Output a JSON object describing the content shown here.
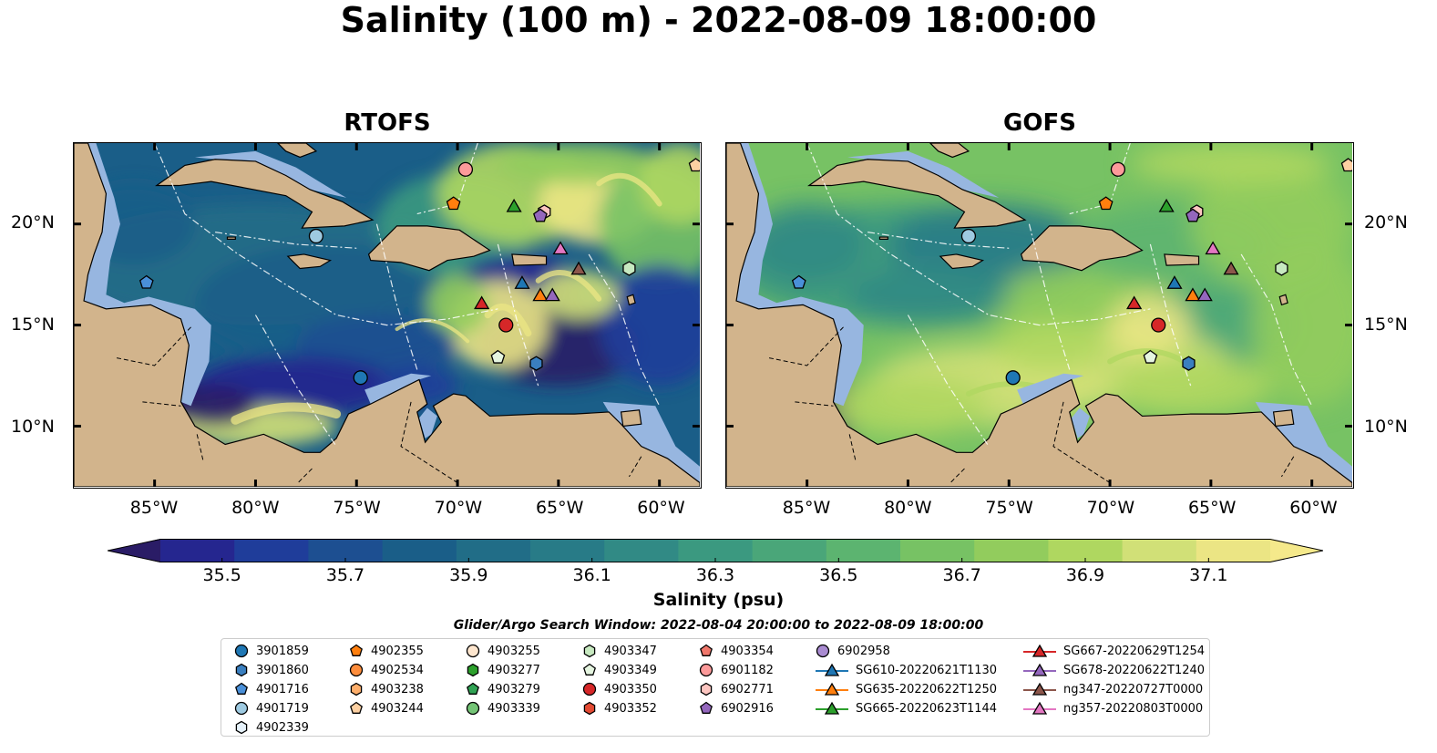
{
  "title": "Salinity (100 m) - 2022-08-09 18:00:00",
  "panels": [
    {
      "title": "RTOFS",
      "key": "rtofs"
    },
    {
      "title": "GOFS",
      "key": "gofs"
    }
  ],
  "map": {
    "lon_range": [
      -89,
      -58
    ],
    "lat_range": [
      7,
      24
    ],
    "lon_ticks": [
      "85°W",
      "80°W",
      "75°W",
      "70°W",
      "65°W",
      "60°W"
    ],
    "lon_tick_values": [
      -85,
      -80,
      -75,
      -70,
      -65,
      -60
    ],
    "lat_ticks": [
      "20°N",
      "15°N",
      "10°N"
    ],
    "lat_tick_values": [
      20,
      15,
      10
    ],
    "land_color": "#d2b48c",
    "shelf_color": "#97b6e0"
  },
  "colorbar": {
    "label": "Salinity (psu)",
    "min": 35.4,
    "max": 37.2,
    "ticks": [
      "35.5",
      "35.7",
      "35.9",
      "36.1",
      "36.3",
      "36.5",
      "36.7",
      "36.9",
      "37.1"
    ],
    "tick_values": [
      35.5,
      35.7,
      35.9,
      36.1,
      36.3,
      36.5,
      36.7,
      36.9,
      37.1
    ],
    "colors": [
      "#2a1c66",
      "#25268f",
      "#1f3d9a",
      "#1d4f91",
      "#1a5e88",
      "#216d87",
      "#287b87",
      "#318a85",
      "#3b9980",
      "#4aa679",
      "#5cb470",
      "#77c264",
      "#92cc5d",
      "#afd760",
      "#d1e077",
      "#ebe584",
      "#f5e98b"
    ]
  },
  "search_window": "Glider/Argo Search Window: 2022-08-04 20:00:00 to 2022-08-09 18:00:00",
  "legend": [
    {
      "label": "3901859",
      "marker": "circle",
      "color": "#1f77b4"
    },
    {
      "label": "3901860",
      "marker": "hexagon",
      "color": "#3a7fbf"
    },
    {
      "label": "4901716",
      "marker": "pentagon",
      "color": "#4a90d9"
    },
    {
      "label": "4901719",
      "marker": "circle",
      "color": "#9ecae1"
    },
    {
      "label": "4902339",
      "marker": "hexagon",
      "color": "#e6f2fb"
    },
    {
      "label": "4902355",
      "marker": "pentagon",
      "color": "#ff7f0e"
    },
    {
      "label": "4902534",
      "marker": "circle",
      "color": "#fd8d3c"
    },
    {
      "label": "4903238",
      "marker": "hexagon",
      "color": "#fdae6b"
    },
    {
      "label": "4903244",
      "marker": "pentagon",
      "color": "#fdd0a2"
    },
    {
      "label": "4903255",
      "marker": "circle",
      "color": "#fee6ce"
    },
    {
      "label": "4903277",
      "marker": "hexagon",
      "color": "#2ca02c"
    },
    {
      "label": "4903279",
      "marker": "pentagon",
      "color": "#31a354"
    },
    {
      "label": "4903339",
      "marker": "circle",
      "color": "#74c476"
    },
    {
      "label": "4903347",
      "marker": "hexagon",
      "color": "#c7e9c0"
    },
    {
      "label": "4903349",
      "marker": "pentagon",
      "color": "#e5f5e0"
    },
    {
      "label": "4903350",
      "marker": "circle",
      "color": "#d62728"
    },
    {
      "label": "4903352",
      "marker": "hexagon",
      "color": "#e34a33"
    },
    {
      "label": "4903354",
      "marker": "pentagon",
      "color": "#f0776b"
    },
    {
      "label": "6901182",
      "marker": "circle",
      "color": "#fc9a9a"
    },
    {
      "label": "6902771",
      "marker": "hexagon",
      "color": "#fcc5c0"
    },
    {
      "label": "6902916",
      "marker": "pentagon",
      "color": "#9467bd"
    },
    {
      "label": "6902958",
      "marker": "circle",
      "color": "#a98bd1"
    },
    {
      "label": "SG610-20220621T1130",
      "marker": "triangle-line",
      "color": "#1f77b4"
    },
    {
      "label": "SG635-20220622T1250",
      "marker": "triangle-line",
      "color": "#ff7f0e"
    },
    {
      "label": "SG665-20220623T1144",
      "marker": "triangle-line",
      "color": "#2ca02c"
    },
    {
      "label": "SG667-20220629T1254",
      "marker": "triangle-line",
      "color": "#d62728"
    },
    {
      "label": "SG678-20220622T1240",
      "marker": "triangle-line",
      "color": "#9467bd"
    },
    {
      "label": "ng347-20220727T0000",
      "marker": "triangle-line",
      "color": "#8c564b"
    },
    {
      "label": "ng357-20220803T0000",
      "marker": "triangle-line",
      "color": "#e377c2"
    }
  ],
  "observations": [
    {
      "lon": -74.8,
      "lat": 12.4,
      "marker": "circle",
      "color": "#1f77b4"
    },
    {
      "lon": -66.1,
      "lat": 13.1,
      "marker": "hexagon",
      "color": "#3a7fbf"
    },
    {
      "lon": -85.4,
      "lat": 17.1,
      "marker": "pentagon",
      "color": "#4a90d9"
    },
    {
      "lon": -77.0,
      "lat": 19.4,
      "marker": "circle",
      "color": "#9ecae1"
    },
    {
      "lon": -61.5,
      "lat": 17.8,
      "marker": "hexagon",
      "color": "#c7e9c0"
    },
    {
      "lon": -70.2,
      "lat": 21.0,
      "marker": "pentagon",
      "color": "#ff7f0e"
    },
    {
      "lon": -58.2,
      "lat": 22.9,
      "marker": "pentagon",
      "color": "#fdd0a2"
    },
    {
      "lon": -69.6,
      "lat": 22.7,
      "marker": "circle",
      "color": "#fc9a9a"
    },
    {
      "lon": -65.7,
      "lat": 20.6,
      "marker": "hexagon",
      "color": "#fcc5c0"
    },
    {
      "lon": -65.9,
      "lat": 20.4,
      "marker": "pentagon",
      "color": "#9467bd"
    },
    {
      "lon": -68.0,
      "lat": 13.4,
      "marker": "pentagon",
      "color": "#e5f5e0"
    },
    {
      "lon": -67.6,
      "lat": 15.0,
      "marker": "circle",
      "color": "#d62728"
    },
    {
      "lon": -68.8,
      "lat": 16.1,
      "marker": "triangle",
      "color": "#d62728"
    },
    {
      "lon": -66.8,
      "lat": 17.1,
      "marker": "triangle",
      "color": "#1f77b4"
    },
    {
      "lon": -65.9,
      "lat": 16.5,
      "marker": "triangle",
      "color": "#ff7f0e"
    },
    {
      "lon": -65.3,
      "lat": 16.5,
      "marker": "triangle",
      "color": "#9467bd"
    },
    {
      "lon": -67.2,
      "lat": 20.9,
      "marker": "triangle",
      "color": "#2ca02c"
    },
    {
      "lon": -64.0,
      "lat": 17.8,
      "marker": "triangle",
      "color": "#8c564b"
    },
    {
      "lon": -64.9,
      "lat": 18.8,
      "marker": "triangle",
      "color": "#e377c2"
    }
  ]
}
